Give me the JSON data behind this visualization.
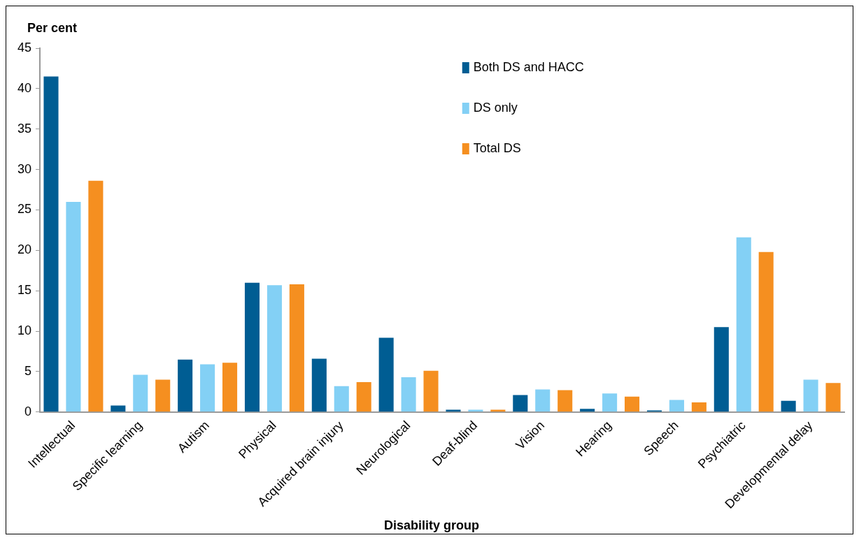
{
  "chart_data": {
    "type": "bar",
    "xlabel": "Disability group",
    "ylabel": "Per cent",
    "categories": [
      "Intellectual",
      "Specific learning",
      "Autism",
      "Physical",
      "Acquired brain injury",
      "Neurological",
      "Deaf-blind",
      "Vision",
      "Hearing",
      "Speech",
      "Psychiatric",
      "Developmental delay"
    ],
    "series": [
      {
        "name": "Both DS and HACC",
        "color": "#005d93",
        "values": [
          41.5,
          0.8,
          6.5,
          16.0,
          6.6,
          9.2,
          0.3,
          2.1,
          0.4,
          0.2,
          10.5,
          1.4
        ]
      },
      {
        "name": "DS only",
        "color": "#83d0f5",
        "values": [
          26.0,
          4.6,
          5.9,
          15.7,
          3.2,
          4.3,
          0.3,
          2.8,
          2.3,
          1.5,
          21.6,
          4.0
        ]
      },
      {
        "name": "Total DS",
        "color": "#f58f20",
        "values": [
          28.6,
          4.0,
          6.1,
          15.8,
          3.7,
          5.1,
          0.3,
          2.7,
          1.9,
          1.2,
          19.8,
          3.6
        ]
      }
    ],
    "ylim": [
      0,
      45
    ],
    "yticks": [
      0,
      5,
      10,
      15,
      20,
      25,
      30,
      35,
      40,
      45
    ],
    "grid": false,
    "legend": "top right"
  }
}
